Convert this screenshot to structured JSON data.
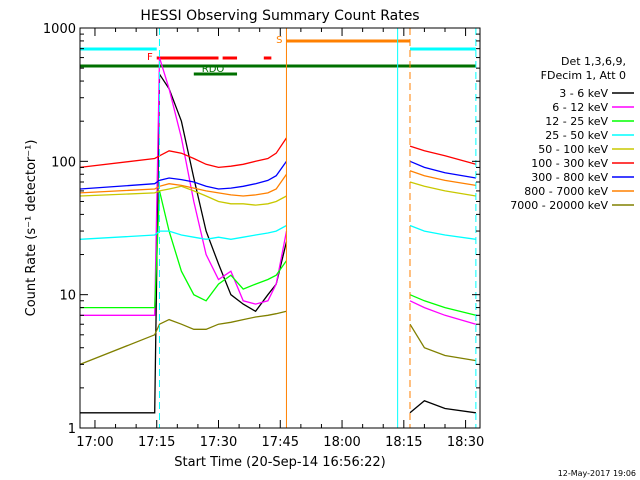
{
  "chart_data": {
    "type": "line",
    "title": "HESSI Observing Summary Count Rates",
    "xlabel": "Start Time (20-Sep-14 16:56:22)",
    "ylabel": "Count Rate (s⁻¹ detector⁻¹)",
    "ylog": true,
    "ylim": [
      1,
      1000
    ],
    "xlim": [
      "16:56:22",
      "18:33:30"
    ],
    "x_ticks": [
      "17:00",
      "17:15",
      "17:30",
      "17:45",
      "18:00",
      "18:15",
      "18:30"
    ],
    "y_ticks": [
      "1",
      "10",
      "100",
      "1000"
    ],
    "legend_header": [
      "Det 1,3,6,9,",
      "FDecim 1, Att 0"
    ],
    "legend_position": "right",
    "footer_date": "12-May-2017 19:06",
    "annotations": [
      {
        "label": "F",
        "color": "#ff0000",
        "segments": [
          [
            "17:15:00",
            "17:30:00"
          ],
          [
            "17:31:00",
            "17:34:30"
          ],
          [
            "17:41:00",
            "17:42:50"
          ]
        ]
      },
      {
        "label": "S",
        "color": "#ff8000",
        "segments": [
          [
            "17:46:30",
            "18:16:30"
          ]
        ]
      },
      {
        "label": "RDO",
        "color": "#007000",
        "segments": [
          [
            "17:24:00",
            "17:34:30"
          ]
        ]
      },
      {
        "label": "",
        "color": "#00ffff",
        "segments": [
          [
            "16:56:22",
            "17:15:00"
          ],
          [
            "18:16:30",
            "18:32:30"
          ]
        ]
      },
      {
        "label": "",
        "color": "#007000",
        "segments": [
          [
            "16:56:22",
            "18:32:30"
          ]
        ]
      }
    ],
    "vertical_lines": [
      {
        "time": "17:15:40",
        "color": "#00ffff",
        "style": "dashed"
      },
      {
        "time": "17:46:30",
        "color": "#ff8000",
        "style": "solid"
      },
      {
        "time": "18:13:30",
        "color": "#00ffff",
        "style": "solid"
      },
      {
        "time": "18:16:30",
        "color": "#ff8000",
        "style": "dashed"
      },
      {
        "time": "18:32:30",
        "color": "#00ffff",
        "style": "dashed"
      }
    ],
    "series": [
      {
        "name": "3 - 6 keV",
        "color": "#000000",
        "points": [
          [
            "16:56:22",
            1.3
          ],
          [
            "17:14:30",
            1.3
          ],
          [
            "17:15:40",
            450
          ],
          [
            "17:18:00",
            350
          ],
          [
            "17:21:00",
            200
          ],
          [
            "17:24:00",
            75
          ],
          [
            "17:27:00",
            30
          ],
          [
            "17:30:00",
            17
          ],
          [
            "17:33:00",
            10
          ],
          [
            "17:36:00",
            8.5
          ],
          [
            "17:39:00",
            7.5
          ],
          [
            "17:42:00",
            10
          ],
          [
            "17:44:00",
            12
          ],
          [
            "17:46:30",
            25
          ],
          [
            "18:16:30",
            1.3
          ],
          [
            "18:20:00",
            1.6
          ],
          [
            "18:25:00",
            1.4
          ],
          [
            "18:32:30",
            1.3
          ]
        ]
      },
      {
        "name": "6 - 12 keV",
        "color": "#ff00ff",
        "points": [
          [
            "16:56:22",
            7
          ],
          [
            "17:14:30",
            7
          ],
          [
            "17:15:40",
            600
          ],
          [
            "17:18:00",
            350
          ],
          [
            "17:21:00",
            150
          ],
          [
            "17:24:00",
            50
          ],
          [
            "17:27:00",
            20
          ],
          [
            "17:30:00",
            13
          ],
          [
            "17:33:00",
            15
          ],
          [
            "17:36:00",
            9
          ],
          [
            "17:39:00",
            8.5
          ],
          [
            "17:42:00",
            9
          ],
          [
            "17:44:00",
            12
          ],
          [
            "17:46:30",
            30
          ],
          [
            "18:16:30",
            9
          ],
          [
            "18:20:00",
            8
          ],
          [
            "18:25:00",
            7
          ],
          [
            "18:32:30",
            6
          ]
        ]
      },
      {
        "name": "12 - 25 keV",
        "color": "#00ff00",
        "points": [
          [
            "16:56:22",
            8
          ],
          [
            "17:14:30",
            8
          ],
          [
            "17:15:40",
            60
          ],
          [
            "17:18:00",
            30
          ],
          [
            "17:21:00",
            15
          ],
          [
            "17:24:00",
            10
          ],
          [
            "17:27:00",
            9
          ],
          [
            "17:30:00",
            12
          ],
          [
            "17:33:00",
            14
          ],
          [
            "17:36:00",
            11
          ],
          [
            "17:39:00",
            12
          ],
          [
            "17:42:00",
            13
          ],
          [
            "17:44:00",
            14
          ],
          [
            "17:46:30",
            18
          ],
          [
            "18:16:30",
            10
          ],
          [
            "18:20:00",
            9
          ],
          [
            "18:25:00",
            8
          ],
          [
            "18:32:30",
            7
          ]
        ]
      },
      {
        "name": "25 - 50 keV",
        "color": "#00ffff",
        "points": [
          [
            "16:56:22",
            26
          ],
          [
            "17:14:30",
            28
          ],
          [
            "17:15:40",
            30
          ],
          [
            "17:18:00",
            30
          ],
          [
            "17:21:00",
            28
          ],
          [
            "17:24:00",
            27
          ],
          [
            "17:27:00",
            26
          ],
          [
            "17:30:00",
            27
          ],
          [
            "17:33:00",
            26
          ],
          [
            "17:36:00",
            27
          ],
          [
            "17:39:00",
            28
          ],
          [
            "17:42:00",
            29
          ],
          [
            "17:44:00",
            30
          ],
          [
            "17:46:30",
            33
          ],
          [
            "18:16:30",
            33
          ],
          [
            "18:20:00",
            30
          ],
          [
            "18:25:00",
            28
          ],
          [
            "18:32:30",
            26
          ]
        ]
      },
      {
        "name": "50 - 100 keV",
        "color": "#c8c800",
        "points": [
          [
            "16:56:22",
            55
          ],
          [
            "17:14:30",
            58
          ],
          [
            "17:15:40",
            60
          ],
          [
            "17:18:00",
            62
          ],
          [
            "17:21:00",
            65
          ],
          [
            "17:24:00",
            60
          ],
          [
            "17:27:00",
            55
          ],
          [
            "17:30:00",
            50
          ],
          [
            "17:33:00",
            48
          ],
          [
            "17:36:00",
            48
          ],
          [
            "17:39:00",
            47
          ],
          [
            "17:42:00",
            48
          ],
          [
            "17:44:00",
            50
          ],
          [
            "17:46:30",
            55
          ],
          [
            "18:16:30",
            70
          ],
          [
            "18:20:00",
            65
          ],
          [
            "18:25:00",
            60
          ],
          [
            "18:32:30",
            55
          ]
        ]
      },
      {
        "name": "100 - 300 keV",
        "color": "#ff0000",
        "points": [
          [
            "16:56:22",
            90
          ],
          [
            "17:14:30",
            105
          ],
          [
            "17:15:40",
            110
          ],
          [
            "17:18:00",
            120
          ],
          [
            "17:21:00",
            115
          ],
          [
            "17:24:00",
            105
          ],
          [
            "17:27:00",
            95
          ],
          [
            "17:30:00",
            90
          ],
          [
            "17:33:00",
            92
          ],
          [
            "17:36:00",
            95
          ],
          [
            "17:39:00",
            100
          ],
          [
            "17:42:00",
            105
          ],
          [
            "17:44:00",
            115
          ],
          [
            "17:46:30",
            150
          ],
          [
            "18:16:30",
            130
          ],
          [
            "18:20:00",
            120
          ],
          [
            "18:25:00",
            110
          ],
          [
            "18:32:30",
            95
          ]
        ]
      },
      {
        "name": "300 - 800 keV",
        "color": "#0000ff",
        "points": [
          [
            "16:56:22",
            62
          ],
          [
            "17:14:30",
            68
          ],
          [
            "17:15:40",
            72
          ],
          [
            "17:18:00",
            75
          ],
          [
            "17:21:00",
            73
          ],
          [
            "17:24:00",
            70
          ],
          [
            "17:27:00",
            65
          ],
          [
            "17:30:00",
            62
          ],
          [
            "17:33:00",
            63
          ],
          [
            "17:36:00",
            65
          ],
          [
            "17:39:00",
            68
          ],
          [
            "17:42:00",
            72
          ],
          [
            "17:44:00",
            78
          ],
          [
            "17:46:30",
            100
          ],
          [
            "18:16:30",
            100
          ],
          [
            "18:20:00",
            90
          ],
          [
            "18:25:00",
            82
          ],
          [
            "18:32:30",
            75
          ]
        ]
      },
      {
        "name": "800 - 7000 keV",
        "color": "#ff8000",
        "points": [
          [
            "16:56:22",
            58
          ],
          [
            "17:14:30",
            62
          ],
          [
            "17:15:40",
            65
          ],
          [
            "17:18:00",
            68
          ],
          [
            "17:21:00",
            66
          ],
          [
            "17:24:00",
            63
          ],
          [
            "17:27:00",
            60
          ],
          [
            "17:30:00",
            58
          ],
          [
            "17:33:00",
            56
          ],
          [
            "17:36:00",
            55
          ],
          [
            "17:39:00",
            56
          ],
          [
            "17:42:00",
            58
          ],
          [
            "17:44:00",
            62
          ],
          [
            "17:46:30",
            80
          ],
          [
            "18:16:30",
            85
          ],
          [
            "18:20:00",
            78
          ],
          [
            "18:25:00",
            72
          ],
          [
            "18:32:30",
            66
          ]
        ]
      },
      {
        "name": "7000 - 20000 keV",
        "color": "#808000",
        "points": [
          [
            "16:56:22",
            3
          ],
          [
            "17:14:30",
            5
          ],
          [
            "17:15:40",
            6
          ],
          [
            "17:18:00",
            6.5
          ],
          [
            "17:21:00",
            6
          ],
          [
            "17:24:00",
            5.5
          ],
          [
            "17:27:00",
            5.5
          ],
          [
            "17:30:00",
            6
          ],
          [
            "17:33:00",
            6.2
          ],
          [
            "17:36:00",
            6.5
          ],
          [
            "17:39:00",
            6.8
          ],
          [
            "17:42:00",
            7
          ],
          [
            "17:44:00",
            7.2
          ],
          [
            "17:46:30",
            7.5
          ],
          [
            "18:16:30",
            6
          ],
          [
            "18:20:00",
            4
          ],
          [
            "18:25:00",
            3.5
          ],
          [
            "18:32:30",
            3.2
          ]
        ]
      }
    ]
  }
}
